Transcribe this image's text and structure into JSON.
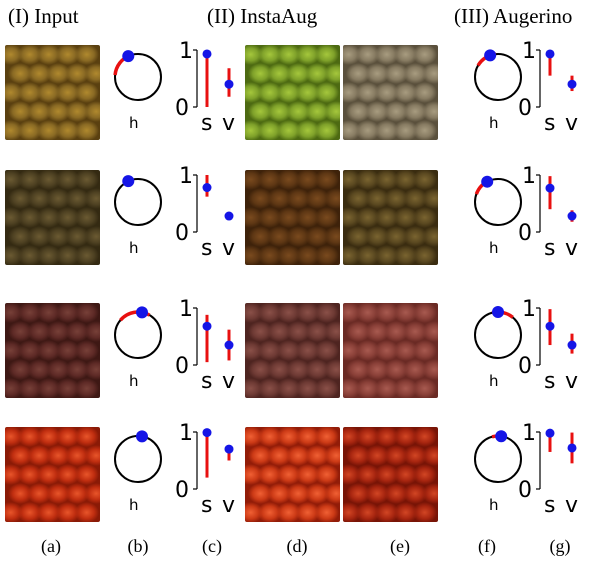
{
  "headers": {
    "input": "(I) Input",
    "instaaug": "(II) InstaAug",
    "augerino": "(III) Augerino"
  },
  "column_labels": [
    "(a)",
    "(b)",
    "(c)",
    "(d)",
    "(e)",
    "(f)",
    "(g)"
  ],
  "glyphs": {
    "hue": "h",
    "sat": "s",
    "val": "v",
    "tick_top": "1",
    "tick_bottom": "0"
  },
  "colors": {
    "range": "#e81010",
    "point": "#1515e6",
    "circle": "#000000"
  },
  "rows": [
    {
      "textures": [
        {
          "name": "input",
          "base": "#8a6a24",
          "hi": "#b0892e",
          "lo": "#5a4010"
        },
        {
          "name": "instaaug",
          "base": "#7fa12a",
          "hi": "#a5c73c",
          "lo": "#4d6a12"
        },
        {
          "name": "augerino",
          "base": "#877b62",
          "hi": "#a89c80",
          "lo": "#5a503c"
        }
      ],
      "instaaug_hue": {
        "arc_start": 275,
        "arc_end": 340,
        "point": 335
      },
      "instaaug_sv": {
        "s": {
          "lo": 0.0,
          "hi": 0.93,
          "point": 0.93
        },
        "v": {
          "lo": 0.18,
          "hi": 0.68,
          "point": 0.4
        }
      },
      "augerino_hue": {
        "arc_start": 300,
        "arc_end": 355,
        "point": 340
      },
      "augerino_sv": {
        "s": {
          "lo": 0.55,
          "hi": 0.95,
          "point": 0.93
        },
        "v": {
          "lo": 0.28,
          "hi": 0.55,
          "point": 0.4
        }
      }
    },
    {
      "textures": [
        {
          "name": "input",
          "base": "#4e4122",
          "hi": "#6b5a32",
          "lo": "#342a12"
        },
        {
          "name": "instaaug",
          "base": "#5e3714",
          "hi": "#7a4a1e",
          "lo": "#3e220a"
        },
        {
          "name": "augerino",
          "base": "#5a4820",
          "hi": "#7a6430",
          "lo": "#3a2c10"
        }
      ],
      "instaaug_hue": {
        "arc_start": 330,
        "arc_end": 340,
        "point": 335
      },
      "instaaug_sv": {
        "s": {
          "lo": 0.62,
          "hi": 1.0,
          "point": 0.78
        },
        "v": {
          "lo": 0.28,
          "hi": 0.28,
          "point": 0.28
        }
      },
      "augerino_hue": {
        "arc_start": 290,
        "arc_end": 340,
        "point": 332
      },
      "augerino_sv": {
        "s": {
          "lo": 0.4,
          "hi": 0.98,
          "point": 0.77
        },
        "v": {
          "lo": 0.18,
          "hi": 0.38,
          "point": 0.28
        }
      }
    },
    {
      "textures": [
        {
          "name": "input",
          "base": "#5e2a26",
          "hi": "#774038",
          "lo": "#3e1814"
        },
        {
          "name": "instaaug",
          "base": "#6e3a34",
          "hi": "#8a5048",
          "lo": "#4e2420"
        },
        {
          "name": "augerino",
          "base": "#8a4038",
          "hi": "#a85a50",
          "lo": "#6a2a24"
        }
      ],
      "instaaug_hue": {
        "arc_start": 310,
        "arc_end": 390,
        "point": 10
      },
      "instaaug_sv": {
        "s": {
          "lo": 0.05,
          "hi": 0.88,
          "point": 0.68
        },
        "v": {
          "lo": 0.08,
          "hi": 0.62,
          "point": 0.35
        }
      },
      "augerino_hue": {
        "arc_start": 345,
        "arc_end": 400,
        "point": 0
      },
      "augerino_sv": {
        "s": {
          "lo": 0.35,
          "hi": 0.98,
          "point": 0.68
        },
        "v": {
          "lo": 0.2,
          "hi": 0.55,
          "point": 0.35
        }
      }
    },
    {
      "textures": [
        {
          "name": "input",
          "base": "#c02e10",
          "hi": "#e8552a",
          "lo": "#8a1a06"
        },
        {
          "name": "instaaug",
          "base": "#cc3a16",
          "hi": "#f06034",
          "lo": "#921c08"
        },
        {
          "name": "augerino",
          "base": "#a82610",
          "hi": "#d24624",
          "lo": "#781406"
        }
      ],
      "instaaug_hue": {
        "arc_start": 10,
        "arc_end": 10,
        "point": 10
      },
      "instaaug_sv": {
        "s": {
          "lo": 0.2,
          "hi": 0.99,
          "point": 0.99
        },
        "v": {
          "lo": 0.5,
          "hi": 0.75,
          "point": 0.7
        }
      },
      "augerino_hue": {
        "arc_start": 345,
        "arc_end": 20,
        "point": 8
      },
      "augerino_sv": {
        "s": {
          "lo": 0.65,
          "hi": 0.99,
          "point": 0.98
        },
        "v": {
          "lo": 0.45,
          "hi": 0.99,
          "point": 0.72
        }
      }
    }
  ]
}
